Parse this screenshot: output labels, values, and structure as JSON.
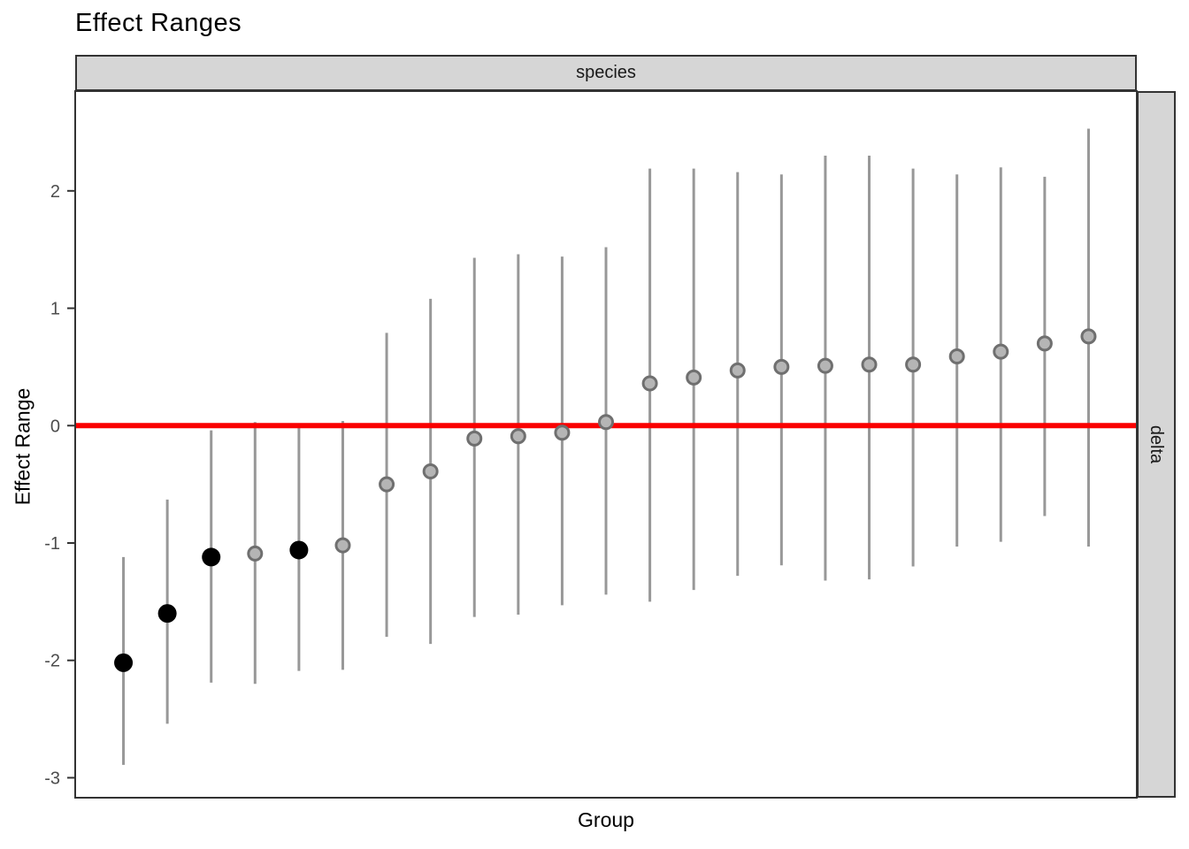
{
  "chart": {
    "title": "Effect Ranges",
    "facet_col_label": "species",
    "facet_row_label": "delta",
    "xlabel": "Group",
    "ylabel": "Effect Range"
  },
  "chart_data": {
    "type": "pointrange",
    "title": "Effect Ranges",
    "xlabel": "Group",
    "ylabel": "Effect Range",
    "facet": {
      "column": "species",
      "row": "delta"
    },
    "legend": "none",
    "grid": false,
    "x_tick_labels_shown": false,
    "yticks": [
      2,
      1,
      0,
      -1,
      -2,
      -3
    ],
    "ylim": [
      -3.17,
      2.85
    ],
    "xlim": [
      -0.1,
      24.1
    ],
    "reference_line_y": 0,
    "groups": [
      {
        "x": 1,
        "estimate": -2.02,
        "lower": -2.89,
        "upper": -1.12,
        "significant": true
      },
      {
        "x": 2,
        "estimate": -1.6,
        "lower": -2.54,
        "upper": -0.63,
        "significant": true
      },
      {
        "x": 3,
        "estimate": -1.12,
        "lower": -2.19,
        "upper": -0.04,
        "significant": true
      },
      {
        "x": 4,
        "estimate": -1.09,
        "lower": -2.2,
        "upper": 0.03,
        "significant": false
      },
      {
        "x": 5,
        "estimate": -1.06,
        "lower": -2.09,
        "upper": -0.02,
        "significant": true
      },
      {
        "x": 6,
        "estimate": -1.02,
        "lower": -2.08,
        "upper": 0.04,
        "significant": false
      },
      {
        "x": 7,
        "estimate": -0.5,
        "lower": -1.8,
        "upper": 0.79,
        "significant": false
      },
      {
        "x": 8,
        "estimate": -0.39,
        "lower": -1.86,
        "upper": 1.08,
        "significant": false
      },
      {
        "x": 9,
        "estimate": -0.11,
        "lower": -1.63,
        "upper": 1.43,
        "significant": false
      },
      {
        "x": 10,
        "estimate": -0.09,
        "lower": -1.61,
        "upper": 1.46,
        "significant": false
      },
      {
        "x": 11,
        "estimate": -0.06,
        "lower": -1.53,
        "upper": 1.44,
        "significant": false
      },
      {
        "x": 12,
        "estimate": 0.03,
        "lower": -1.44,
        "upper": 1.52,
        "significant": false
      },
      {
        "x": 13,
        "estimate": 0.36,
        "lower": -1.5,
        "upper": 2.19,
        "significant": false
      },
      {
        "x": 14,
        "estimate": 0.41,
        "lower": -1.4,
        "upper": 2.19,
        "significant": false
      },
      {
        "x": 15,
        "estimate": 0.47,
        "lower": -1.28,
        "upper": 2.16,
        "significant": false
      },
      {
        "x": 16,
        "estimate": 0.5,
        "lower": -1.19,
        "upper": 2.14,
        "significant": false
      },
      {
        "x": 17,
        "estimate": 0.51,
        "lower": -1.32,
        "upper": 2.3,
        "significant": false
      },
      {
        "x": 18,
        "estimate": 0.52,
        "lower": -1.31,
        "upper": 2.3,
        "significant": false
      },
      {
        "x": 19,
        "estimate": 0.52,
        "lower": -1.2,
        "upper": 2.19,
        "significant": false
      },
      {
        "x": 20,
        "estimate": 0.59,
        "lower": -1.03,
        "upper": 2.14,
        "significant": false
      },
      {
        "x": 21,
        "estimate": 0.63,
        "lower": -0.99,
        "upper": 2.2,
        "significant": false
      },
      {
        "x": 22,
        "estimate": 0.7,
        "lower": -0.77,
        "upper": 2.12,
        "significant": false
      },
      {
        "x": 23,
        "estimate": 0.76,
        "lower": -1.03,
        "upper": 2.53,
        "significant": false
      }
    ],
    "style": {
      "reference_line_color": "#FA0000",
      "bar_color": "#989898",
      "point_fill_nonsig": "#B5B5B5",
      "point_stroke_nonsig": "#6F6F6F",
      "point_color_sig": "#000000",
      "strip_fill": "#D6D6D6",
      "panel_border_color": "#333333",
      "tick_label_color": "#4D4D4D"
    }
  }
}
